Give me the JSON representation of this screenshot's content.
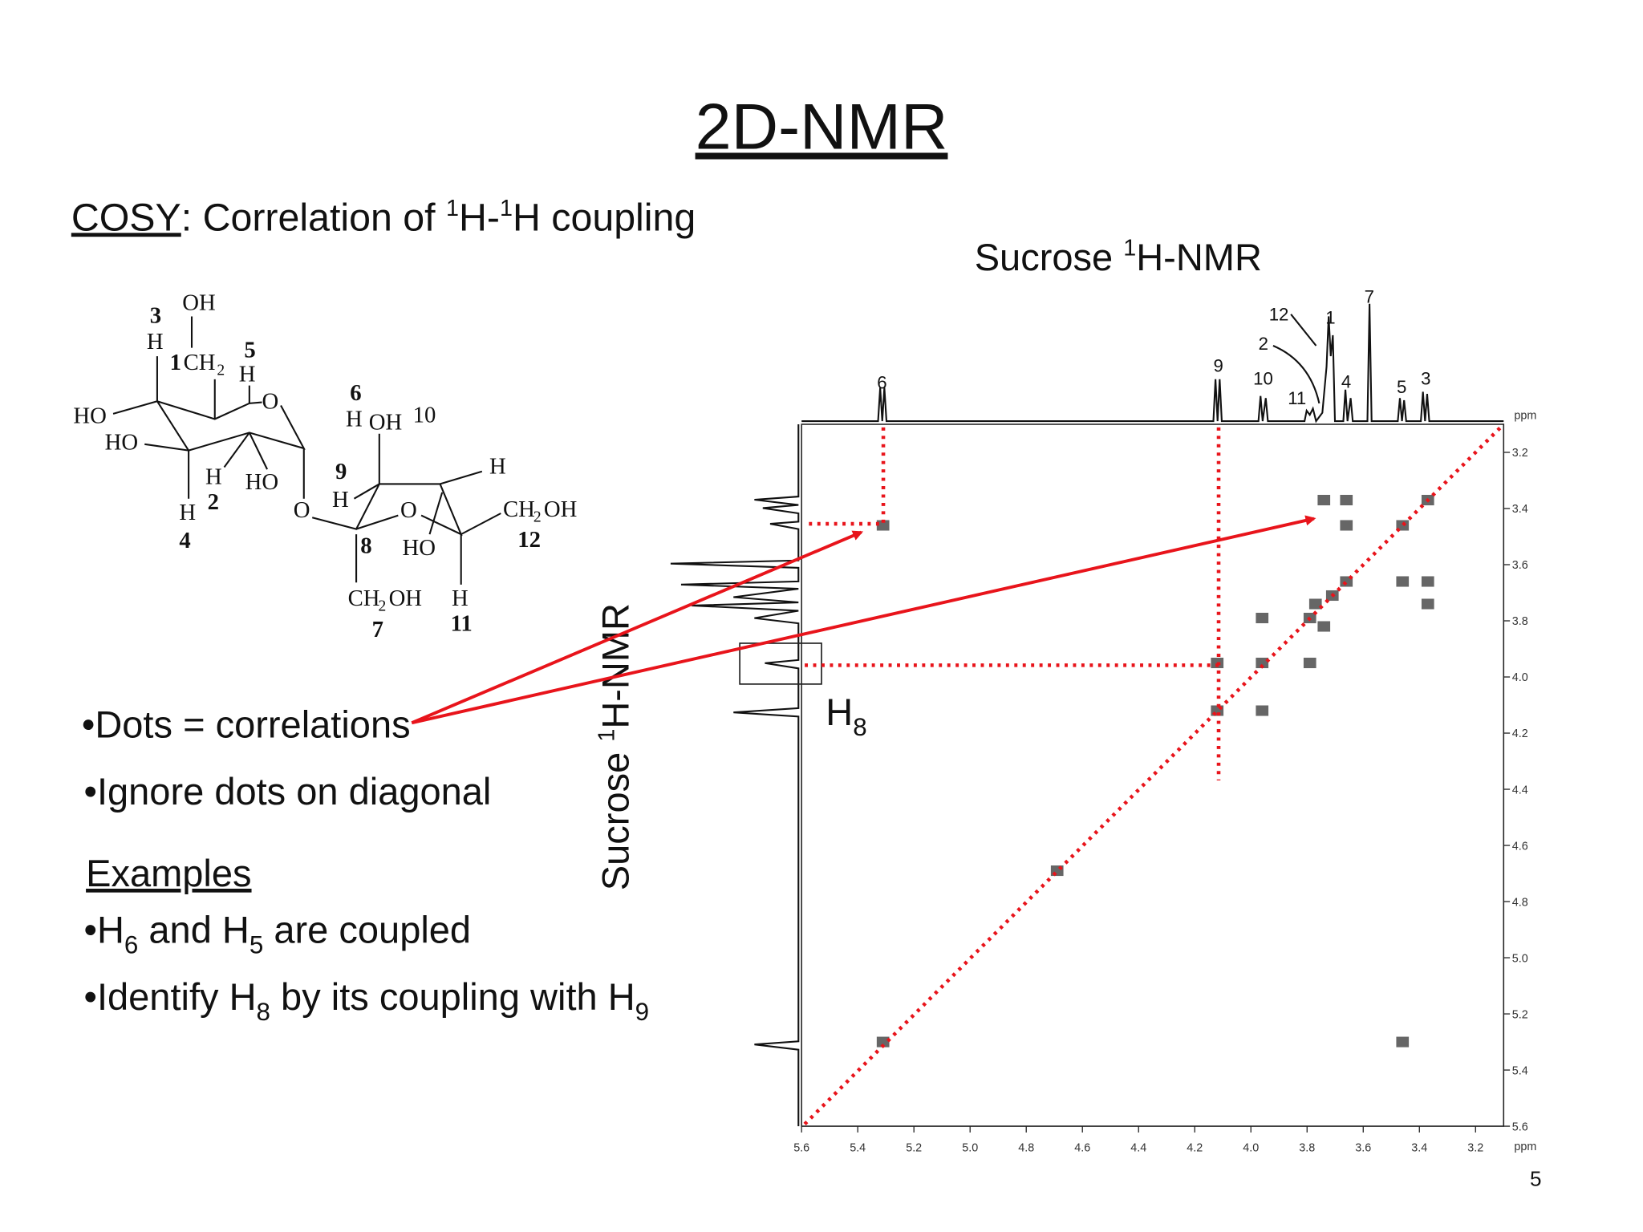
{
  "title": "2D-NMR",
  "subtitle": {
    "term": "COSY",
    "parts": [
      ": Correlation of ",
      "1",
      "H-",
      "1",
      "H coupling"
    ]
  },
  "molecule": {
    "labels": [
      "OH",
      "3",
      "H",
      "1",
      "CH",
      "2",
      "5",
      "H",
      "O",
      "HO",
      "HO",
      "6",
      "H",
      "OH",
      "10",
      "H",
      "HO",
      "9",
      "H",
      "H",
      "H",
      "2",
      "4",
      "O",
      "O",
      "CH",
      "2",
      "OH",
      "8",
      "HO",
      "12",
      "CH",
      "2",
      "OH",
      "H",
      "7",
      "11"
    ]
  },
  "bullets": [
    [
      "•Dots = correlations"
    ],
    [
      "•Ignore dots on diagonal"
    ]
  ],
  "examples": {
    "heading": "Examples",
    "items": [
      [
        "•H",
        "6",
        " and H",
        "5",
        " are coupled"
      ],
      [
        "•Identify H",
        "8",
        " by its coupling with H",
        "9"
      ]
    ]
  },
  "spectrum": {
    "top_label": [
      "Sucrose ",
      "1",
      "H-NMR"
    ],
    "side_label": [
      "Sucrose ",
      "1",
      "H-NMR"
    ],
    "peak_labels": [
      "6",
      "9",
      "10",
      "11",
      "12",
      "1",
      "2",
      "4",
      "7",
      "5",
      "3"
    ],
    "box_label": [
      "H",
      "8"
    ],
    "x_unit": "ppm",
    "y_unit": "ppm",
    "xlim": [
      5.6,
      3.1
    ],
    "ylim": [
      5.6,
      3.1
    ],
    "xticks": [
      5.6,
      5.4,
      5.2,
      {
        "value": 5,
        "label": "5.0"
      },
      4.8,
      4.6,
      4.4,
      4.2,
      {
        "value": 4,
        "label": "4.0"
      },
      3.8,
      3.6,
      3.4,
      3.2
    ],
    "yticks": [
      3.2,
      3.4,
      3.6,
      3.8,
      {
        "value": 4,
        "label": "4.0"
      },
      4.2,
      4.4,
      4.6,
      4.8,
      {
        "value": 5,
        "label": "5.0"
      },
      5.2,
      5.4,
      5.6
    ],
    "cross_peaks": {
      "x": [
        3.37,
        3.46,
        3.66,
        3.71,
        3.79,
        3.96,
        4.12,
        4.69,
        5.31,
        3.74,
        3.66,
        3.66,
        3.46,
        3.37,
        3.37,
        3.96,
        3.79,
        3.96,
        4.12,
        5.31,
        3.46,
        3.77,
        3.74
      ],
      "y": [
        3.37,
        3.46,
        3.66,
        3.71,
        3.79,
        3.95,
        4.12,
        4.69,
        5.3,
        3.37,
        3.37,
        3.46,
        3.66,
        3.66,
        3.74,
        3.79,
        3.95,
        4.12,
        3.95,
        3.46,
        5.3,
        3.74,
        3.82
      ]
    },
    "peak_color": "#333333"
  },
  "slide_number": "5"
}
